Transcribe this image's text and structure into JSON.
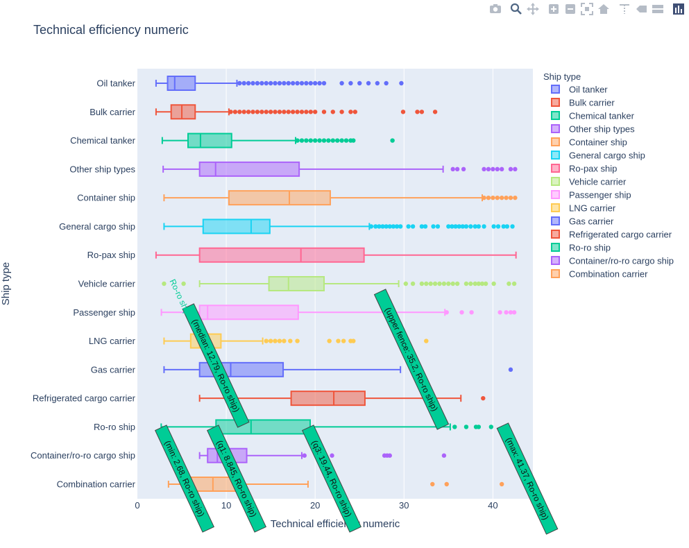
{
  "toolbar": {
    "buttons": [
      {
        "name": "camera-icon",
        "group": 0
      },
      {
        "name": "zoom-icon",
        "group": 1,
        "active": true
      },
      {
        "name": "pan-icon",
        "group": 1
      },
      {
        "name": "zoom-in-icon",
        "group": 2
      },
      {
        "name": "zoom-out-icon",
        "group": 2
      },
      {
        "name": "autoscale-icon",
        "group": 2
      },
      {
        "name": "home-icon",
        "group": 2
      },
      {
        "name": "spike-lines-icon",
        "group": 3
      },
      {
        "name": "hover-closest-icon",
        "group": 3
      },
      {
        "name": "hover-compare-icon",
        "group": 3
      },
      {
        "name": "plotly-logo-icon",
        "group": 4
      }
    ]
  },
  "chart_data": {
    "type": "box",
    "orientation": "horizontal",
    "title": "Technical efficiency numeric",
    "xlabel": "Technical efficiency numeric",
    "ylabel": "Ship type",
    "xlim": [
      0,
      44.5
    ],
    "xticks": [
      0,
      10,
      20,
      30,
      40
    ],
    "grid": true,
    "legend": {
      "title": "Ship type",
      "placement": "right"
    },
    "series": [
      {
        "name": "Oil tanker",
        "color": "#636efa",
        "min": 2.1,
        "q1": 3.4,
        "median": 4.2,
        "q3": 6.5,
        "max": 11.2,
        "outliers": [
          11.5,
          12,
          12.5,
          13,
          13.5,
          14,
          14.5,
          15,
          15.5,
          16,
          16.5,
          17,
          17.5,
          18,
          18.5,
          19,
          19.5,
          20,
          20.5,
          21,
          23,
          24,
          25,
          26,
          27,
          28,
          29.7
        ]
      },
      {
        "name": "Bulk carrier",
        "color": "#EF553B",
        "min": 2.1,
        "q1": 3.8,
        "median": 5.0,
        "q3": 6.5,
        "max": 10.3,
        "outliers": [
          10.5,
          11,
          11.5,
          12,
          12.5,
          13,
          13.5,
          14,
          14.5,
          15,
          15.5,
          16,
          16.5,
          17,
          17.5,
          18,
          18.5,
          19,
          19.5,
          20,
          21,
          22,
          23,
          24,
          24.5,
          29.9,
          31.5,
          32,
          33.5
        ]
      },
      {
        "name": "Chemical tanker",
        "color": "#00cc96",
        "min": 2.8,
        "q1": 5.7,
        "median": 7.1,
        "q3": 10.6,
        "max": 17.8,
        "outliers": [
          18,
          18.5,
          19,
          19.5,
          20,
          20.5,
          21,
          21.5,
          22,
          22.5,
          23,
          23.5,
          24,
          24.3,
          28.7
        ]
      },
      {
        "name": "Other ship types",
        "color": "#ab63fa",
        "min": 2.9,
        "q1": 7.0,
        "median": 8.8,
        "q3": 18.2,
        "max": 34.4,
        "outliers": [
          35.5,
          36,
          36.7,
          39,
          39.5,
          40,
          40.5,
          41,
          42,
          42.5
        ]
      },
      {
        "name": "Container ship",
        "color": "#FFA15A",
        "min": 3.0,
        "q1": 10.3,
        "median": 17.1,
        "q3": 21.7,
        "max": 38.8,
        "outliers": [
          39,
          39.5,
          40,
          40.5,
          41,
          41.5,
          42,
          42.5
        ]
      },
      {
        "name": "General cargo ship",
        "color": "#19d3f3",
        "min": 3.0,
        "q1": 7.4,
        "median": 12.8,
        "q3": 14.9,
        "max": 26.1,
        "outliers": [
          26.3,
          26.8,
          27.2,
          27.6,
          28,
          28.4,
          28.8,
          29.2,
          29.6,
          30.5,
          31,
          32,
          32.4,
          33.3,
          33.8,
          35,
          35.4,
          35.8,
          36.2,
          36.6,
          37,
          37.5,
          38,
          38.4,
          39,
          40.1,
          40.6,
          41.2,
          41.6,
          42.2
        ]
      },
      {
        "name": "Ro-pax ship",
        "color": "#FF6692",
        "min": 2.1,
        "q1": 7.0,
        "median": 18.4,
        "q3": 25.5,
        "max": 42.6,
        "outliers": []
      },
      {
        "name": "Vehicle carrier",
        "color": "#B6E880",
        "min": 7.0,
        "q1": 14.8,
        "median": 17.0,
        "q3": 21.0,
        "max": 29.4,
        "outliers": [
          3.0,
          5.2,
          30.2,
          31,
          32,
          32.5,
          33,
          33.5,
          34,
          34.5,
          35,
          35.5,
          36,
          37,
          37.5,
          38,
          38.4,
          38.8,
          39.2,
          40.1,
          41.8,
          42.4
        ]
      },
      {
        "name": "Passenger ship",
        "color": "#FF97FF",
        "min": 2.7,
        "q1": 7.0,
        "median": 7.9,
        "q3": 18.1,
        "max": 34.6,
        "outliers": [
          34.8,
          36.5,
          37.6,
          40.8,
          41.5,
          42,
          42.4
        ]
      },
      {
        "name": "LNG carrier",
        "color": "#FECB52",
        "min": 3.0,
        "q1": 6.0,
        "median": 7.0,
        "q3": 9.4,
        "max": 14.1,
        "outliers": [
          14.5,
          15,
          15.5,
          16,
          16.5,
          17.2,
          18,
          21.6,
          22.6,
          23.2,
          24,
          24.3,
          32.5
        ]
      },
      {
        "name": "Gas carrier",
        "color": "#636efa",
        "min": 3.0,
        "q1": 7.0,
        "median": 10.5,
        "q3": 16.4,
        "max": 29.6,
        "outliers": [
          42.0
        ]
      },
      {
        "name": "Refrigerated cargo carrier",
        "color": "#EF553B",
        "min": 7.0,
        "q1": 17.3,
        "median": 22.1,
        "q3": 25.6,
        "max": 36.4,
        "outliers": [
          38.9
        ]
      },
      {
        "name": "Ro-ro ship",
        "color": "#00cc96",
        "min": 2.68,
        "q1": 8.845,
        "median": 12.79,
        "q3": 19.44,
        "max": 35.2,
        "outliers": [
          35.7,
          37,
          38.1,
          38.4,
          39.8,
          41.37
        ]
      },
      {
        "name": "Container/ro-ro cargo ship",
        "color": "#ab63fa",
        "min": 7.0,
        "q1": 7.9,
        "median": 9.0,
        "q3": 12.3,
        "max": 18.5,
        "outliers": [
          18.8,
          21.1,
          21.9,
          27.8,
          28.1,
          28.4,
          34.5
        ]
      },
      {
        "name": "Combination carrier",
        "color": "#FFA15A",
        "min": 3.5,
        "q1": 5.9,
        "median": 8.5,
        "q3": 11.1,
        "max": 19.2,
        "outliers": [
          33.2,
          34.8,
          41.0
        ]
      }
    ],
    "hover": {
      "series": "Ro-ro ship",
      "labels": [
        {
          "key": "min",
          "value": 2.68,
          "text": "(min: 2.68, Ro-ro ship)"
        },
        {
          "key": "q1",
          "value": 8.845,
          "text": "(q1: 8.845, Ro-ro ship)"
        },
        {
          "key": "median",
          "value": 12.79,
          "text": "(median: 12.79, Ro-ro ship)"
        },
        {
          "key": "q3",
          "value": 19.44,
          "text": "(q3: 19.44, Ro-ro ship)"
        },
        {
          "key": "upper_fence",
          "value": 35.2,
          "text": "(upper fence: 35.2, Ro-ro ship)"
        },
        {
          "key": "max",
          "value": 41.37,
          "text": "(max: 41.37, Ro-ro ship)"
        }
      ],
      "axis_label": "Ro-ro ship"
    }
  }
}
